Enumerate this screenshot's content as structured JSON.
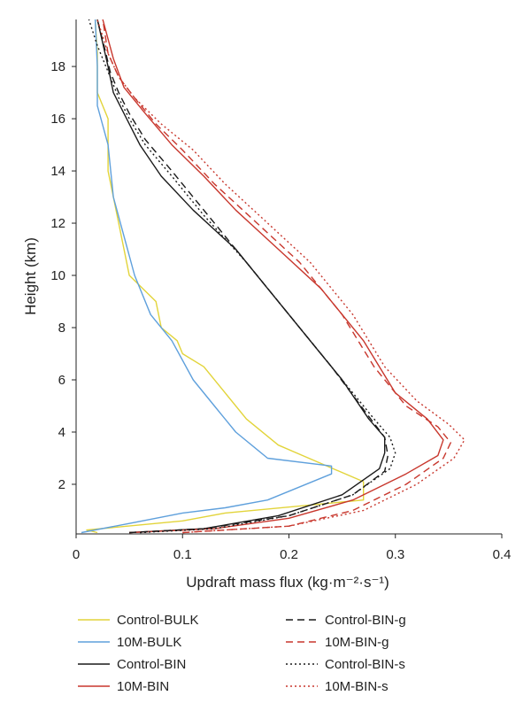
{
  "chart_data": {
    "type": "line",
    "title": "",
    "xlabel": "Updraft mass flux (kg·m⁻²·s⁻¹)",
    "ylabel": "Height (km)",
    "xlim": [
      0,
      0.4
    ],
    "ylim": [
      0.1,
      19.8
    ],
    "xticks": [
      "0",
      "0.1",
      "0.2",
      "0.3",
      "0.4"
    ],
    "yticks": [
      "2",
      "4",
      "6",
      "8",
      "10",
      "12",
      "14",
      "16",
      "18"
    ],
    "grid": false,
    "legend_position": "bottom",
    "series": [
      {
        "name": "Control-BULK",
        "color": "#e2d43a",
        "dash": "solid",
        "x": [
          0.02,
          0.01,
          0.1,
          0.14,
          0.27,
          0.27,
          0.23,
          0.19,
          0.16,
          0.14,
          0.12,
          0.1,
          0.095,
          0.08,
          0.075,
          0.05,
          0.04,
          0.035,
          0.03,
          0.03,
          0.02,
          0.02,
          0.018
        ],
        "y": [
          0.15,
          0.25,
          0.6,
          0.9,
          1.4,
          2.1,
          2.8,
          3.5,
          4.5,
          5.5,
          6.5,
          7.0,
          7.5,
          8.0,
          9.0,
          10.0,
          12.0,
          13.0,
          14.0,
          16.0,
          17.0,
          18.5,
          19.8
        ]
      },
      {
        "name": "10M-BULK",
        "color": "#5fa0dc",
        "dash": "solid",
        "x": [
          0.005,
          0.05,
          0.1,
          0.14,
          0.18,
          0.24,
          0.24,
          0.18,
          0.15,
          0.13,
          0.11,
          0.09,
          0.07,
          0.055,
          0.045,
          0.035,
          0.03,
          0.02,
          0.02,
          0.018
        ],
        "y": [
          0.15,
          0.5,
          0.9,
          1.1,
          1.4,
          2.4,
          2.7,
          3.0,
          4.0,
          5.0,
          6.0,
          7.5,
          8.5,
          10.0,
          11.5,
          13.0,
          15.0,
          16.5,
          18.0,
          19.8
        ]
      },
      {
        "name": "Control-BIN",
        "color": "#1a1a1a",
        "dash": "solid",
        "x": [
          0.05,
          0.12,
          0.19,
          0.25,
          0.285,
          0.29,
          0.29,
          0.275,
          0.25,
          0.22,
          0.18,
          0.15,
          0.11,
          0.08,
          0.06,
          0.045,
          0.035,
          0.03,
          0.02
        ],
        "y": [
          0.15,
          0.3,
          0.8,
          1.6,
          2.6,
          3.2,
          3.8,
          4.5,
          6.0,
          7.5,
          9.5,
          11.0,
          12.5,
          13.8,
          15.0,
          16.2,
          17.0,
          18.0,
          19.8
        ]
      },
      {
        "name": "10M-BIN",
        "color": "#c8372d",
        "dash": "solid",
        "x": [
          0.05,
          0.13,
          0.2,
          0.26,
          0.31,
          0.34,
          0.345,
          0.33,
          0.3,
          0.27,
          0.23,
          0.19,
          0.15,
          0.12,
          0.09,
          0.065,
          0.045,
          0.035,
          0.025
        ],
        "y": [
          0.15,
          0.3,
          0.7,
          1.4,
          2.4,
          3.1,
          3.7,
          4.5,
          5.5,
          7.5,
          9.5,
          11.0,
          12.5,
          13.8,
          15.0,
          16.2,
          17.2,
          18.3,
          19.8
        ]
      },
      {
        "name": "Control-BIN-g",
        "color": "#1a1a1a",
        "dash": "dashed",
        "x": [
          0.05,
          0.12,
          0.2,
          0.26,
          0.29,
          0.293,
          0.29,
          0.275,
          0.24,
          0.2,
          0.16,
          0.12,
          0.09,
          0.065,
          0.05,
          0.04,
          0.032,
          0.028,
          0.02
        ],
        "y": [
          0.15,
          0.3,
          0.8,
          1.6,
          2.5,
          3.1,
          3.8,
          4.6,
          6.5,
          8.5,
          10.5,
          12.5,
          14.0,
          15.2,
          16.2,
          17.0,
          17.8,
          18.5,
          19.8
        ]
      },
      {
        "name": "10M-BIN-g",
        "color": "#c8372d",
        "dash": "dashed",
        "x": [
          0.1,
          0.2,
          0.26,
          0.31,
          0.345,
          0.352,
          0.34,
          0.31,
          0.28,
          0.25,
          0.21,
          0.17,
          0.13,
          0.1,
          0.075,
          0.055,
          0.04,
          0.03,
          0.025
        ],
        "y": [
          0.15,
          0.4,
          1.0,
          2.0,
          3.0,
          3.6,
          4.2,
          5.0,
          6.5,
          8.5,
          10.5,
          12.0,
          13.5,
          14.8,
          15.8,
          16.8,
          17.6,
          18.5,
          19.8
        ]
      },
      {
        "name": "Control-BIN-s",
        "color": "#1a1a1a",
        "dash": "dotted",
        "x": [
          0.06,
          0.13,
          0.2,
          0.26,
          0.295,
          0.3,
          0.295,
          0.28,
          0.25,
          0.2,
          0.16,
          0.12,
          0.09,
          0.065,
          0.05,
          0.04,
          0.03,
          0.02,
          0.012
        ],
        "y": [
          0.15,
          0.3,
          0.8,
          1.6,
          2.6,
          3.2,
          3.8,
          4.5,
          6.0,
          8.5,
          10.5,
          12.3,
          13.8,
          15.0,
          16.0,
          16.8,
          17.8,
          18.8,
          19.8
        ]
      },
      {
        "name": "10M-BIN-s",
        "color": "#c8372d",
        "dash": "dotted",
        "x": [
          0.1,
          0.2,
          0.27,
          0.32,
          0.355,
          0.365,
          0.35,
          0.32,
          0.29,
          0.26,
          0.22,
          0.18,
          0.14,
          0.11,
          0.08,
          0.055,
          0.04,
          0.03,
          0.02
        ],
        "y": [
          0.15,
          0.4,
          1.0,
          2.0,
          3.0,
          3.7,
          4.3,
          5.2,
          6.5,
          8.5,
          10.5,
          12.0,
          13.5,
          14.8,
          15.8,
          16.8,
          17.6,
          18.5,
          19.8
        ]
      }
    ]
  }
}
